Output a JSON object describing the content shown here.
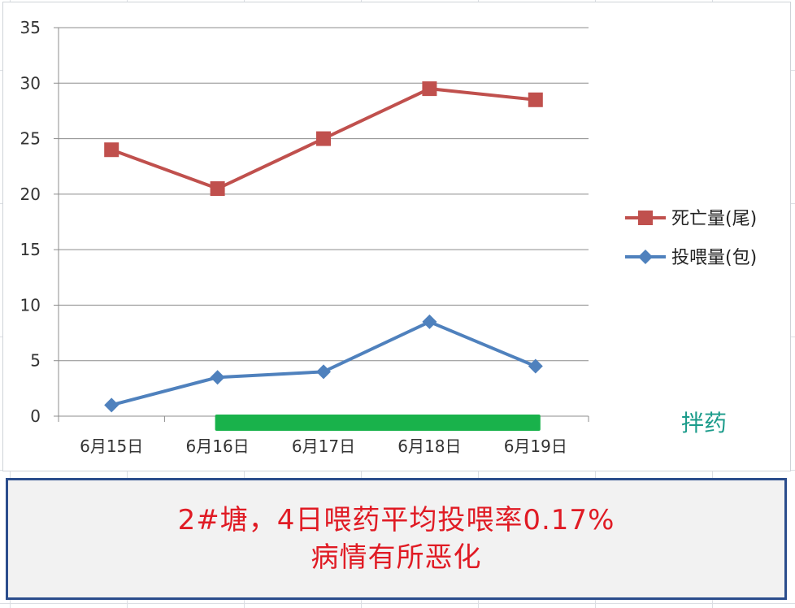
{
  "chart_data": {
    "type": "line",
    "categories": [
      "6月15日",
      "6月16日",
      "6月17日",
      "6月18日",
      "6月19日"
    ],
    "series": [
      {
        "name": "死亡量(尾)",
        "values": [
          24,
          20.5,
          25,
          29.5,
          28.5
        ],
        "color": "#c0504d",
        "marker": "square"
      },
      {
        "name": "投喂量(包)",
        "values": [
          1,
          3.5,
          4,
          8.5,
          4.5
        ],
        "color": "#4f81bd",
        "marker": "diamond"
      }
    ],
    "ylim": [
      0,
      35
    ],
    "yticks": [
      0,
      5,
      10,
      15,
      20,
      25,
      30,
      35
    ],
    "grid": true,
    "legend": "right",
    "annotation": {
      "label": "拌药",
      "label_color": "#1a9b8a",
      "bar_color": "#19b24b",
      "from_category": "6月16日",
      "to_category": "6月19日"
    }
  },
  "note": {
    "line1": "2#塘，4日喂药平均投喂率0.17%",
    "line2": "病情有所恶化"
  }
}
